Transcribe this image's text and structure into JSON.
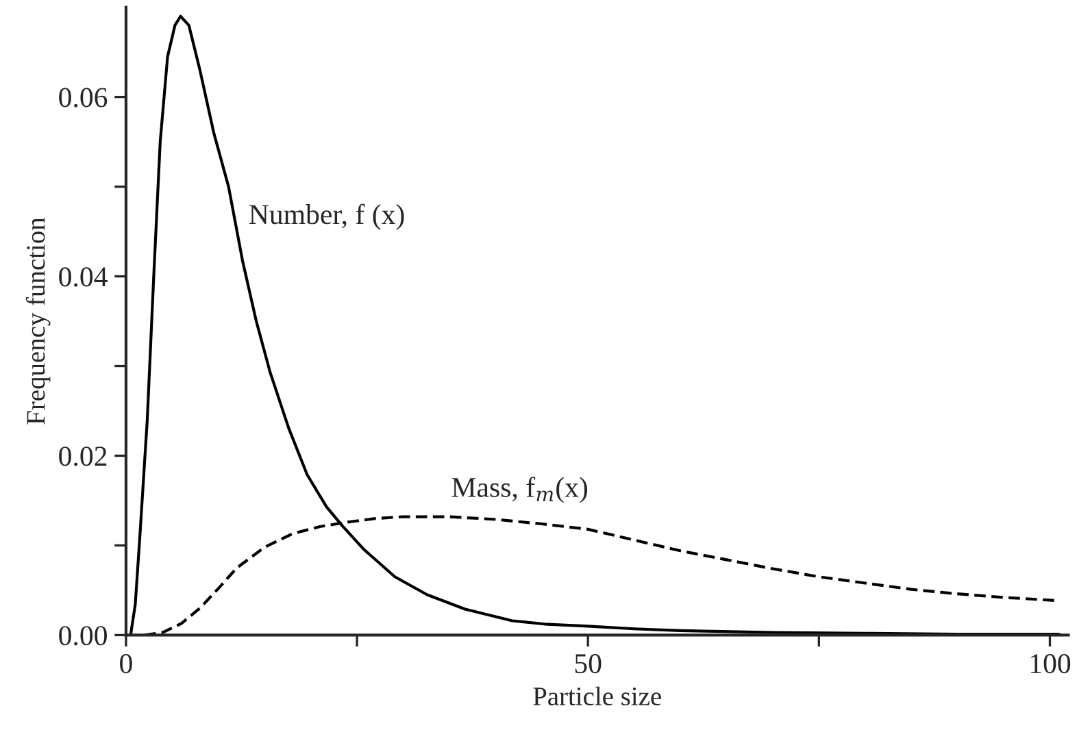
{
  "chart_data": {
    "type": "line",
    "xlabel": "Particle size",
    "ylabel": "Frequency function",
    "xlim": [
      0,
      102
    ],
    "ylim": [
      0,
      0.07
    ],
    "xticks": [
      0,
      {
        "value": 25,
        "label": null
      },
      50,
      {
        "value": 75,
        "label": null
      },
      100
    ],
    "yticks": [
      "0.00",
      {
        "value": 0.01,
        "label": null
      },
      0.02,
      {
        "value": 0.03,
        "label": null
      },
      0.04,
      {
        "value": 0.05,
        "label": null
      },
      0.06
    ],
    "grid": false,
    "legend": false,
    "marker": "none",
    "series": [
      {
        "color": "#000000",
        "line_style": "solid",
        "x": [
          0.5,
          1.0,
          1.5,
          2.3,
          3.0,
          3.7,
          4.5,
          5.3,
          5.9,
          6.8,
          8.0,
          9.5,
          11.1,
          12.6,
          14.1,
          15.6,
          17.6,
          19.6,
          21.7,
          23.4,
          25.7,
          29.1,
          32.6,
          36.7,
          41.8,
          45.6,
          50,
          55,
          60,
          70,
          80,
          90,
          101
        ],
        "values": [
          0,
          0.0034,
          0.011,
          0.024,
          0.04,
          0.055,
          0.0645,
          0.068,
          0.069,
          0.068,
          0.063,
          0.056,
          0.05,
          0.0418,
          0.035,
          0.0293,
          0.0231,
          0.0179,
          0.0143,
          0.0122,
          0.0096,
          0.0065,
          0.0045,
          0.0029,
          0.0016,
          0.0012,
          0.001,
          0.0007,
          0.0005,
          0.0003,
          0.0002,
          0.0001,
          0.0001
        ]
      },
      {
        "color": "#000000",
        "line_style": "dashed",
        "x": [
          2,
          4,
          6,
          8,
          10,
          12,
          15,
          18,
          21,
          24,
          27,
          30,
          35,
          40,
          45,
          50,
          55,
          60,
          65,
          70,
          75,
          80,
          85,
          90,
          95,
          100,
          101
        ],
        "values": [
          0,
          0.0003,
          0.0013,
          0.003,
          0.0052,
          0.0075,
          0.0098,
          0.0113,
          0.0121,
          0.0126,
          0.013,
          0.0132,
          0.0132,
          0.0129,
          0.0124,
          0.0118,
          0.0106,
          0.0094,
          0.0084,
          0.0074,
          0.0065,
          0.0058,
          0.0051,
          0.0046,
          0.0042,
          0.0039,
          0.0038
        ]
      }
    ],
    "annotations": [
      "Number, f (x)",
      "Mass, f$_{m}$(x)"
    ]
  }
}
